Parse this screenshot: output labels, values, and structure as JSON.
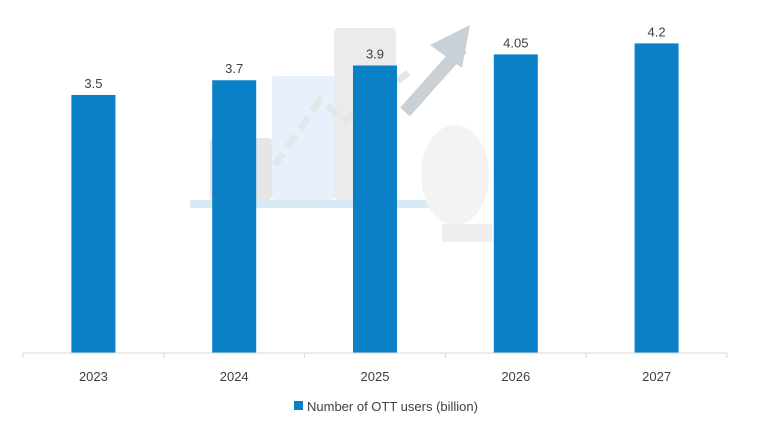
{
  "chart_data": {
    "type": "bar",
    "categories": [
      "2023",
      "2024",
      "2025",
      "2026",
      "2027"
    ],
    "series": [
      {
        "name": "Number of OTT users (billion)",
        "values": [
          3.5,
          3.7,
          3.9,
          4.05,
          4.2
        ],
        "data_labels": [
          "3.5",
          "3.7",
          "3.9",
          "4.05",
          "4.2"
        ],
        "color": "#0a80c6"
      }
    ],
    "ylim": [
      0,
      4.3
    ],
    "grid": false,
    "legend": "bottom",
    "background_icon": "laptop-growth-chart-watermark"
  }
}
